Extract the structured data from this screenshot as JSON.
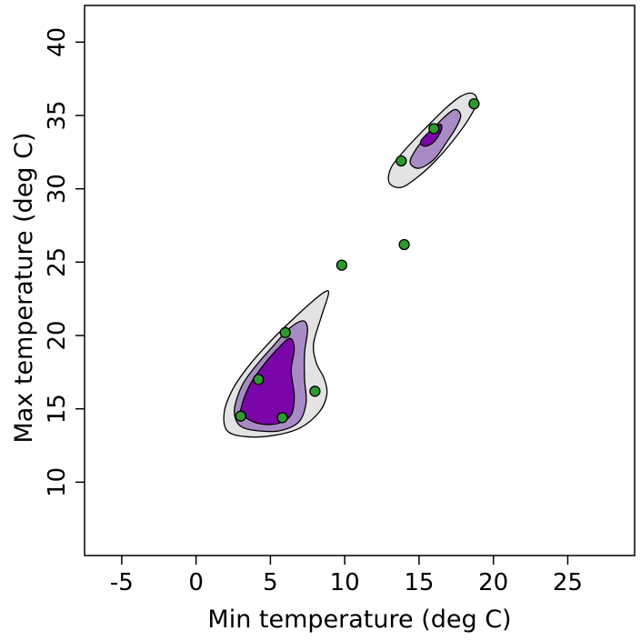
{
  "chart_data": {
    "type": "contour-scatter",
    "title": "",
    "xlabel": "Min temperature (deg C)",
    "ylabel": "Max temperature (deg C)",
    "xlim": [
      -7.5,
      29.5
    ],
    "ylim": [
      5,
      42.5
    ],
    "xticks": [
      -5,
      0,
      5,
      10,
      15,
      20,
      25
    ],
    "yticks": [
      10,
      15,
      20,
      25,
      30,
      35,
      40
    ],
    "grid": false,
    "point_color": "#2e9a2e",
    "contour_levels": [
      {
        "level": "outer",
        "fill": "#e3e3e3",
        "regions": [
          [
            [
              2.1,
              13.5
            ],
            [
              1.9,
              14.8
            ],
            [
              2.5,
              16.4
            ],
            [
              3.6,
              18.0
            ],
            [
              5.0,
              19.6
            ],
            [
              6.4,
              21.0
            ],
            [
              7.8,
              22.3
            ],
            [
              8.7,
              23.0
            ],
            [
              8.9,
              22.8
            ],
            [
              8.4,
              21.2
            ],
            [
              7.9,
              19.4
            ],
            [
              8.1,
              18.1
            ],
            [
              8.6,
              17.1
            ],
            [
              8.8,
              16.0
            ],
            [
              8.3,
              14.8
            ],
            [
              7.0,
              13.7
            ],
            [
              5.3,
              13.2
            ],
            [
              3.4,
              13.1
            ]
          ],
          [
            [
              13.0,
              30.4
            ],
            [
              13.1,
              31.4
            ],
            [
              14.0,
              32.6
            ],
            [
              15.4,
              34.1
            ],
            [
              16.8,
              35.5
            ],
            [
              17.8,
              36.3
            ],
            [
              18.6,
              36.5
            ],
            [
              18.9,
              35.9
            ],
            [
              18.3,
              34.7
            ],
            [
              17.3,
              33.3
            ],
            [
              16.1,
              31.9
            ],
            [
              14.9,
              30.8
            ],
            [
              13.8,
              30.1
            ]
          ]
        ]
      },
      {
        "level": "middle",
        "fill": "#a88bc4",
        "regions": [
          [
            [
              2.7,
              14.2
            ],
            [
              2.6,
              15.1
            ],
            [
              3.1,
              16.6
            ],
            [
              4.0,
              17.9
            ],
            [
              5.2,
              19.3
            ],
            [
              6.3,
              20.5
            ],
            [
              7.2,
              21.0
            ],
            [
              7.5,
              20.4
            ],
            [
              7.3,
              18.8
            ],
            [
              7.3,
              17.0
            ],
            [
              7.4,
              15.4
            ],
            [
              6.9,
              14.1
            ],
            [
              5.6,
              13.5
            ],
            [
              4.2,
              13.5
            ],
            [
              3.2,
              13.7
            ]
          ],
          [
            [
              14.4,
              31.8
            ],
            [
              14.8,
              32.7
            ],
            [
              15.6,
              33.7
            ],
            [
              16.6,
              34.8
            ],
            [
              17.4,
              35.4
            ],
            [
              17.8,
              35.0
            ],
            [
              17.5,
              34.2
            ],
            [
              16.8,
              33.1
            ],
            [
              16.0,
              32.0
            ],
            [
              15.0,
              31.4
            ]
          ]
        ]
      },
      {
        "level": "inner",
        "fill": "#7a05a8",
        "regions": [
          [
            [
              3.1,
              14.6
            ],
            [
              3.1,
              15.3
            ],
            [
              3.6,
              16.6
            ],
            [
              4.4,
              17.8
            ],
            [
              5.4,
              19.0
            ],
            [
              6.3,
              19.8
            ],
            [
              6.6,
              19.1
            ],
            [
              6.4,
              17.6
            ],
            [
              6.6,
              15.9
            ],
            [
              6.4,
              14.6
            ],
            [
              5.5,
              14.0
            ],
            [
              4.2,
              14.0
            ]
          ],
          [
            [
              15.1,
              33.2
            ],
            [
              15.7,
              33.9
            ],
            [
              16.4,
              34.4
            ],
            [
              16.5,
              34.0
            ],
            [
              16.0,
              33.2
            ],
            [
              15.4,
              32.9
            ]
          ]
        ]
      }
    ],
    "points": [
      {
        "x": 3.0,
        "y": 14.5
      },
      {
        "x": 4.2,
        "y": 17.0
      },
      {
        "x": 5.8,
        "y": 14.4
      },
      {
        "x": 6.0,
        "y": 20.2
      },
      {
        "x": 8.0,
        "y": 16.2
      },
      {
        "x": 9.8,
        "y": 24.8
      },
      {
        "x": 13.8,
        "y": 31.9
      },
      {
        "x": 14.0,
        "y": 26.2
      },
      {
        "x": 16.0,
        "y": 34.1
      },
      {
        "x": 18.7,
        "y": 35.8
      }
    ]
  }
}
